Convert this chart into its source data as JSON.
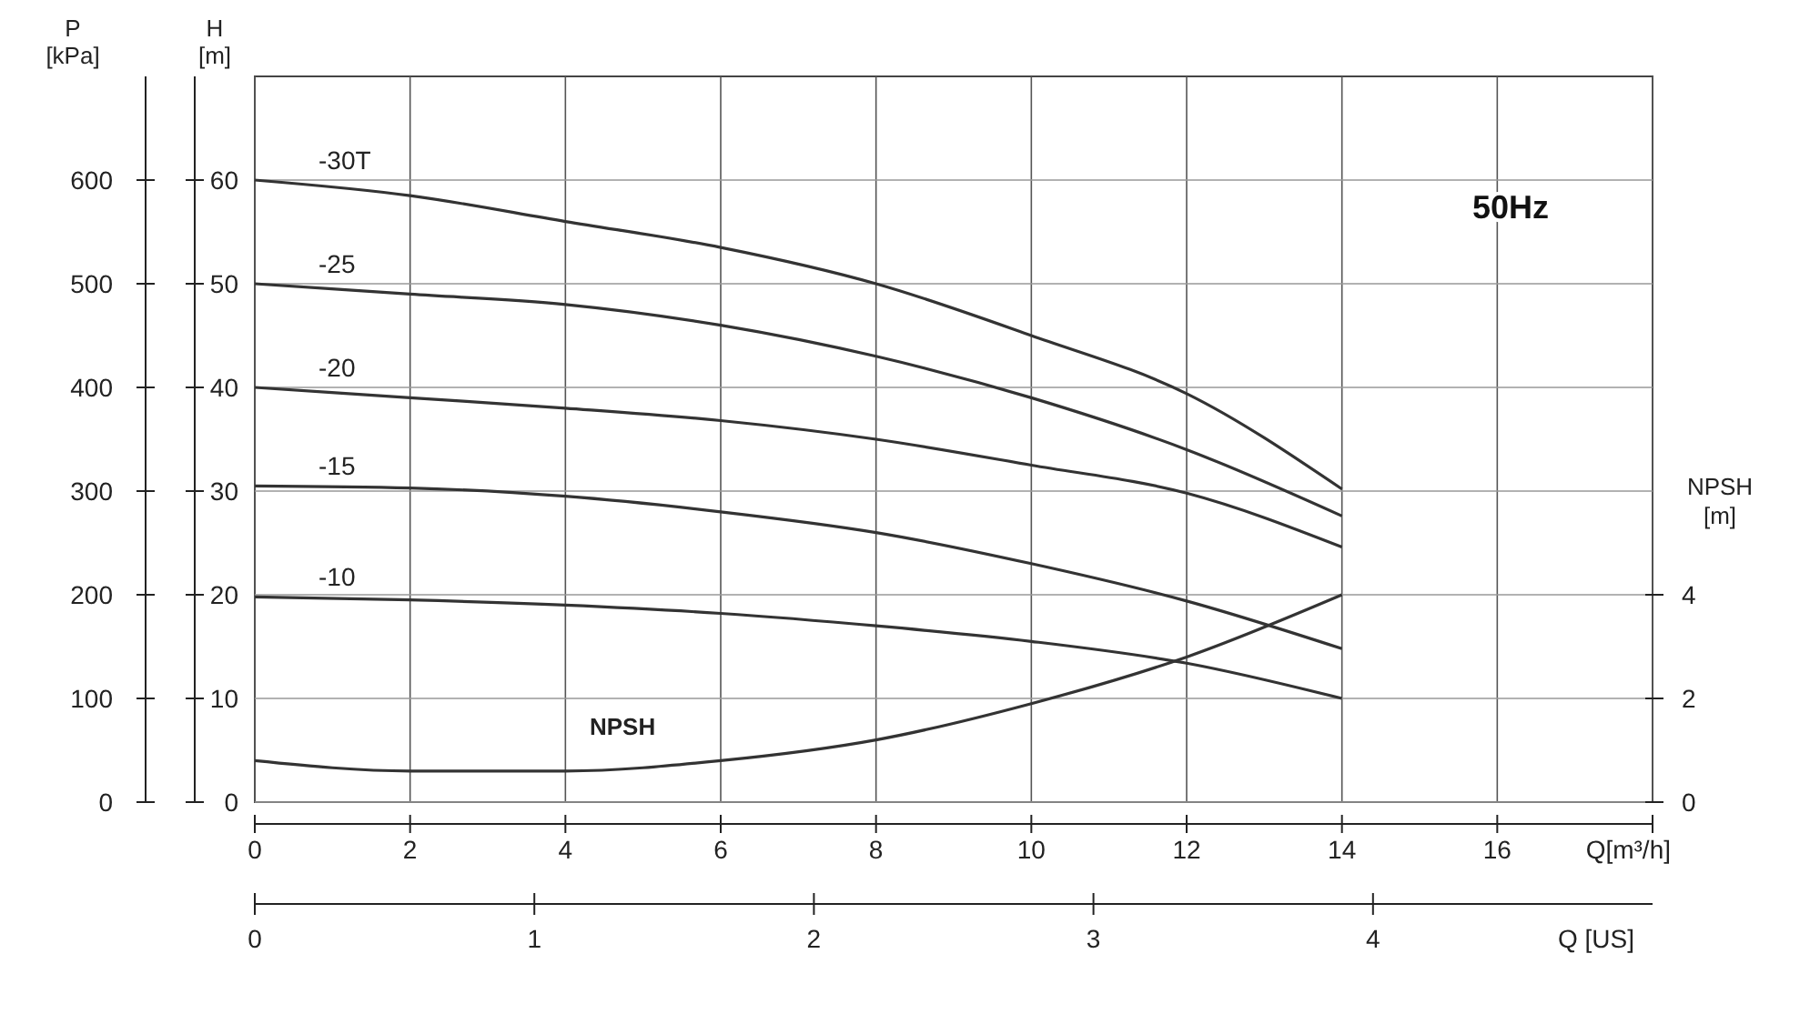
{
  "chart_data": {
    "type": "line",
    "title": "50Hz",
    "xlabel": "Q[m³/h]",
    "ylabel": "H [m]",
    "y2label": "NPSH [m]",
    "y3label": "P [kPa]",
    "x2label": "Q [US]",
    "x": [
      0,
      2,
      4,
      6,
      8,
      10,
      12,
      14
    ],
    "xlim": [
      0,
      18
    ],
    "xticks": [
      0,
      2,
      4,
      6,
      8,
      10,
      12,
      14,
      16,
      {
        "value": 18,
        "label": null
      }
    ],
    "x2lim": [
      0,
      5
    ],
    "x2ticks": [
      0,
      1,
      2,
      3,
      4
    ],
    "ylim": [
      0,
      70
    ],
    "yticks": [
      0,
      10,
      20,
      30,
      40,
      50,
      60
    ],
    "y2lim": [
      0,
      14
    ],
    "y2ticks": [
      0,
      2,
      4
    ],
    "y3lim": [
      0,
      700
    ],
    "y3ticks": [
      0,
      100,
      200,
      300,
      400,
      500,
      600
    ],
    "grid": true,
    "marker": "none",
    "line_style": "solid",
    "series": [
      {
        "name": "-30T",
        "color": "#333333",
        "values": [
          60,
          58.5,
          56,
          53.5,
          50,
          45,
          39.4,
          30.2
        ]
      },
      {
        "name": "-25",
        "color": "#333333",
        "values": [
          50,
          49,
          48,
          46,
          43,
          39,
          34,
          27.6
        ]
      },
      {
        "name": "-20",
        "color": "#333333",
        "values": [
          40,
          39,
          38,
          36.8,
          35,
          32.5,
          29.8,
          24.6
        ]
      },
      {
        "name": "-15",
        "color": "#333333",
        "values": [
          30.5,
          30.3,
          29.5,
          28,
          26,
          23,
          19.4,
          14.8
        ]
      },
      {
        "name": "-10",
        "color": "#333333",
        "values": [
          19.8,
          19.5,
          19,
          18.2,
          17,
          15.5,
          13.4,
          10
        ]
      },
      {
        "name": "NPSH",
        "color": "#333333",
        "axis": "y2",
        "values": [
          0.8,
          0.6,
          0.6,
          0.8,
          1.2,
          1.9,
          2.8,
          4
        ]
      }
    ]
  }
}
